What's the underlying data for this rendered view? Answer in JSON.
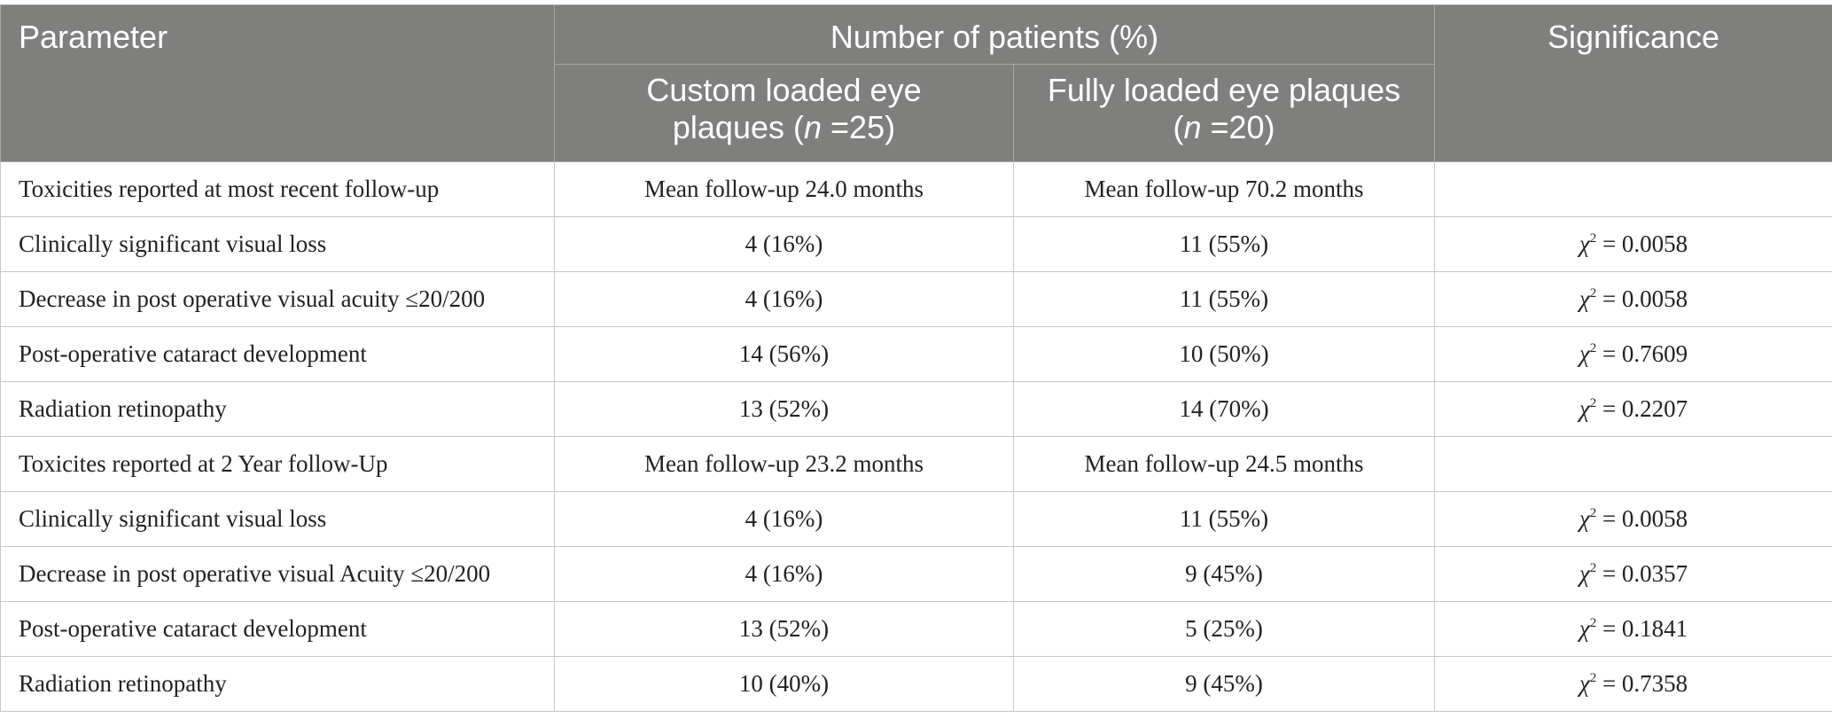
{
  "header": {
    "parameter": "Parameter",
    "group": "Number of patients (%)",
    "significance": "Significance",
    "col_custom_line1": "Custom loaded eye",
    "col_custom_line2_pre": "plaques (",
    "col_custom_n": "n",
    "col_custom_line2_post": " =25)",
    "col_full_line1": "Fully loaded eye plaques",
    "col_full_line2_pre": "(",
    "col_full_n": "n",
    "col_full_line2_post": " =20)"
  },
  "chi_symbol": "χ",
  "chi_sup": "2",
  "rows": [
    {
      "param": "Toxicities reported at most recent follow-up",
      "custom": "Mean follow-up 24.0 months",
      "full": "Mean follow-up 70.2 months",
      "sig": ""
    },
    {
      "param": "Clinically significant visual loss",
      "custom": "4 (16%)",
      "full": "11 (55%)",
      "sig": " = 0.0058"
    },
    {
      "param": "Decrease in post operative visual acuity ≤20/200",
      "custom": "4 (16%)",
      "full": "11 (55%)",
      "sig": " = 0.0058"
    },
    {
      "param": "Post-operative cataract development",
      "custom": "14 (56%)",
      "full": "10 (50%)",
      "sig": " = 0.7609"
    },
    {
      "param": "Radiation retinopathy",
      "custom": "13 (52%)",
      "full": "14 (70%)",
      "sig": " = 0.2207"
    },
    {
      "param": "Toxicites reported at 2 Year follow-Up",
      "custom": "Mean follow-up 23.2 months",
      "full": "Mean follow-up 24.5 months",
      "sig": ""
    },
    {
      "param": "Clinically significant visual loss",
      "custom": "4 (16%)",
      "full": "11 (55%)",
      "sig": " = 0.0058"
    },
    {
      "param": "Decrease in post operative visual Acuity ≤20/200",
      "custom": "4 (16%)",
      "full": "9 (45%)",
      "sig": " = 0.0357"
    },
    {
      "param": "Post-operative cataract development",
      "custom": "13 (52%)",
      "full": "5 (25%)",
      "sig": " = 0.1841"
    },
    {
      "param": "Radiation retinopathy",
      "custom": "10 (40%)",
      "full": "9 (45%)",
      "sig": " = 0.7358"
    }
  ]
}
